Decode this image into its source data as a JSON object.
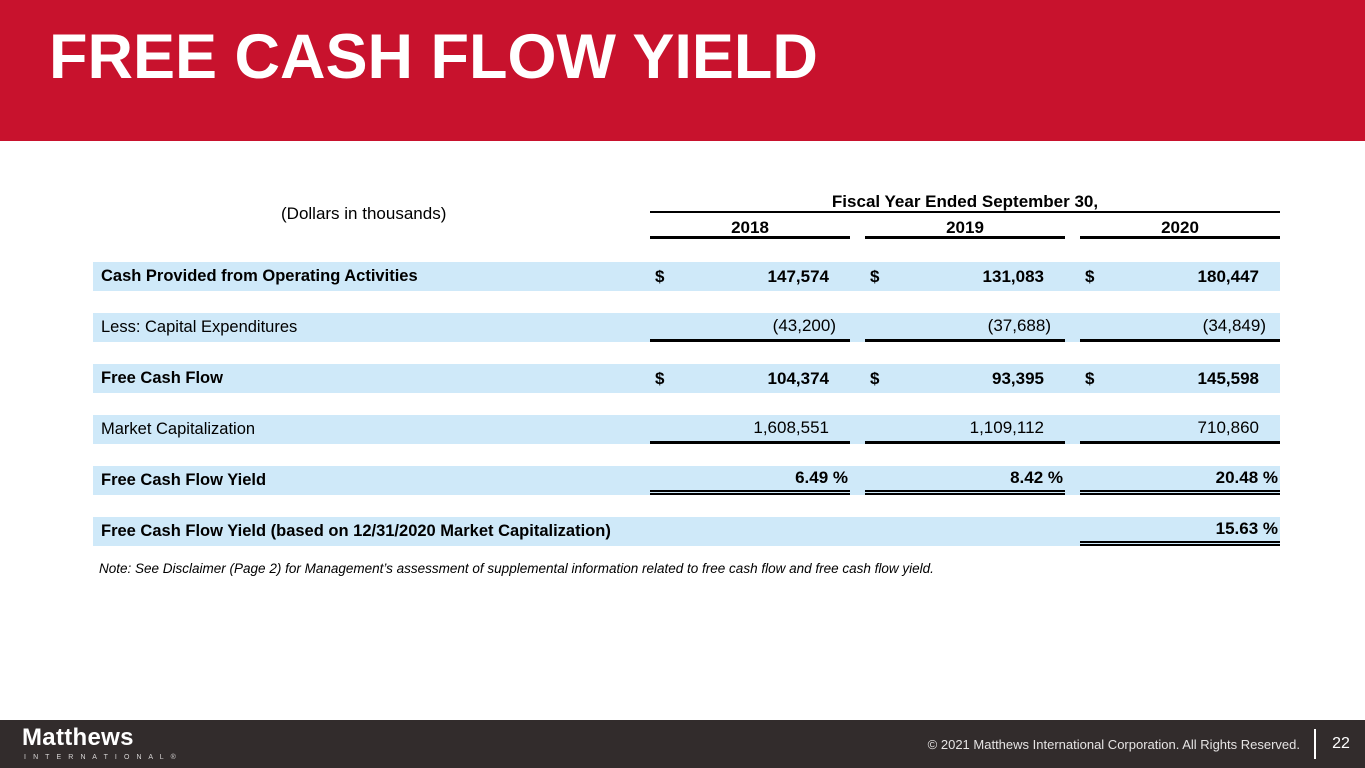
{
  "slide": {
    "title": "FREE CASH FLOW YIELD",
    "colors": {
      "banner_red": "#C8122D",
      "row_highlight_blue": "#CFE9F9",
      "footer_dark": "#322C2C"
    }
  },
  "table": {
    "units_note": "(Dollars in thousands)",
    "header": {
      "group_label": "Fiscal Year Ended September 30,",
      "years": [
        "2018",
        "2019",
        "2020"
      ]
    },
    "rows": [
      {
        "label": "Cash Provided from Operating Activities",
        "currency": "$",
        "values": [
          "147,574",
          "131,083",
          "180,447"
        ]
      },
      {
        "label": "Less: Capital Expenditures",
        "values": [
          "(43,200)",
          "(37,688)",
          "(34,849)"
        ]
      },
      {
        "label": "Free Cash Flow",
        "currency": "$",
        "values": [
          "104,374",
          "93,395",
          "145,598"
        ]
      },
      {
        "label": "Market Capitalization",
        "values": [
          "1,608,551",
          "1,109,112",
          "710,860"
        ]
      },
      {
        "label": "Free Cash Flow Yield",
        "values": [
          "6.49 %",
          "8.42 %",
          "20.48 %"
        ]
      },
      {
        "label": "Free Cash Flow Yield (based on 12/31/2020 Market Capitalization)",
        "values": [
          "",
          "",
          "15.63 %"
        ]
      }
    ]
  },
  "note": "Note: See Disclaimer (Page 2) for Management’s assessment of supplemental information related to free cash flow and free cash flow yield.",
  "footer": {
    "logo_primary": "Matthews",
    "logo_secondary": "I N T E R N A T I O N A L ®",
    "copyright": "© 2021 Matthews International Corporation. All Rights Reserved.",
    "page_number": "22"
  }
}
